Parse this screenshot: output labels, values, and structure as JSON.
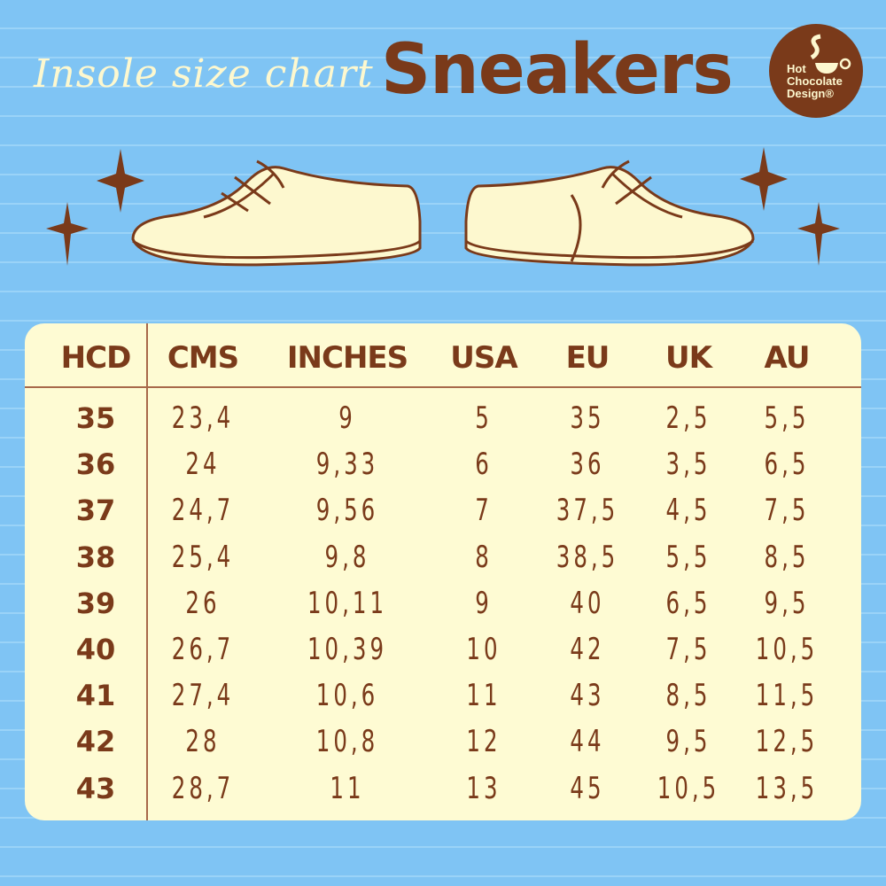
{
  "header": {
    "subtitle": "Insole size chart",
    "title": "Sneakers"
  },
  "logo": {
    "text": "Hot Chocolate Design®",
    "icon": "coffee-cup-icon"
  },
  "colors": {
    "background": "#7fc4f4",
    "card": "#fefbd3",
    "brown": "#7a3a1a",
    "cream": "#fdf8cf"
  },
  "table": {
    "columns": [
      "HCD",
      "CMS",
      "INCHES",
      "USA",
      "EU",
      "UK",
      "AU"
    ],
    "rows": [
      [
        "35",
        "23,4",
        "9",
        "5",
        "35",
        "2,5",
        "5,5"
      ],
      [
        "36",
        "24",
        "9,33",
        "6",
        "36",
        "3,5",
        "6,5"
      ],
      [
        "37",
        "24,7",
        "9,56",
        "7",
        "37,5",
        "4,5",
        "7,5"
      ],
      [
        "38",
        "25,4",
        "9,8",
        "8",
        "38,5",
        "5,5",
        "8,5"
      ],
      [
        "39",
        "26",
        "10,11",
        "9",
        "40",
        "6,5",
        "9,5"
      ],
      [
        "40",
        "26,7",
        "10,39",
        "10",
        "42",
        "7,5",
        "10,5"
      ],
      [
        "41",
        "27,4",
        "10,6",
        "11",
        "43",
        "8,5",
        "11,5"
      ],
      [
        "42",
        "28",
        "10,8",
        "12",
        "44",
        "9,5",
        "12,5"
      ],
      [
        "43",
        "28,7",
        "11",
        "13",
        "45",
        "10,5",
        "13,5"
      ]
    ]
  }
}
